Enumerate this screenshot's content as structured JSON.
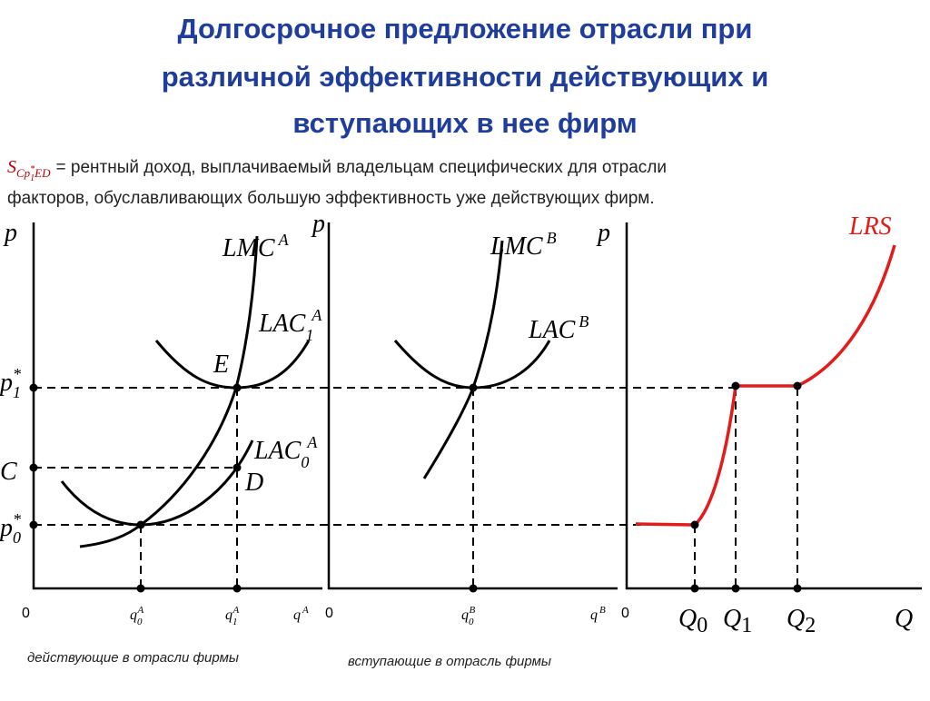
{
  "header": {
    "title_lines": [
      "Долгосрочное предложение отрасли при",
      "различной эффективности действующих и",
      "вступающих в нее фирм"
    ]
  },
  "note": {
    "symbol": "S",
    "sub": "Cp",
    "sub_sub": "1",
    "sub_sup": "*",
    "sub_tail": "ED",
    "eq": "=",
    "lines": [
      "рентный доход, выплачиваемый владельцам специфических для отрасли",
      "факторов, обуславливающих большую эффективность уже действующих фирм."
    ]
  },
  "panels": [
    {
      "y_label": "p",
      "origin": "0",
      "x_label": {
        "base": "q",
        "sup": "A"
      },
      "curves": [
        {
          "base": "LMC",
          "sup": "A"
        },
        {
          "base": "LAC",
          "sub": "1",
          "sup": "A"
        },
        {
          "base": "LAC",
          "sub": "0",
          "sup": "A"
        }
      ],
      "points": [
        "E",
        "D"
      ],
      "price_labels": [
        {
          "base": "p",
          "sub": "1",
          "sup": "*"
        },
        {
          "base": "C"
        },
        {
          "base": "p",
          "sub": "0",
          "sup": "*"
        }
      ],
      "q_labels": [
        {
          "base": "q",
          "sub": "0",
          "sup": "A"
        },
        {
          "base": "q",
          "sub": "1",
          "sup": "A"
        }
      ],
      "caption": "действующие в отрасли фирмы"
    },
    {
      "y_label": "p",
      "origin": "0",
      "x_label": {
        "base": "q",
        "sup": "B"
      },
      "curves": [
        {
          "base": "LMC",
          "sup": "B"
        },
        {
          "base": "LAC",
          "sup": "B"
        }
      ],
      "q_labels": [
        {
          "base": "q",
          "sub": "0",
          "sup": "B"
        }
      ],
      "caption": "вступающие в отрасль фирмы"
    },
    {
      "y_label": "p",
      "origin": "0",
      "x_label": {
        "base": "Q"
      },
      "curves": [
        {
          "base": "LRS"
        }
      ],
      "q_labels": [
        {
          "base": "Q",
          "sub": "0"
        },
        {
          "base": "Q",
          "sub": "1"
        },
        {
          "base": "Q",
          "sub": "2"
        }
      ]
    }
  ]
}
